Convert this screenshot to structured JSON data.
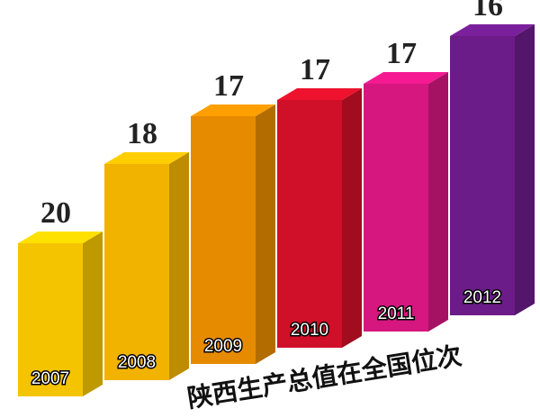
{
  "chart_data": {
    "type": "bar",
    "title": "陕西生产总值在全国位次",
    "categories": [
      "2007",
      "2008",
      "2009",
      "2010",
      "2011",
      "2012"
    ],
    "values": [
      20,
      18,
      17,
      17,
      17,
      16
    ],
    "colors": [
      "#f5c400",
      "#f2b300",
      "#e68a00",
      "#cf1028",
      "#d5177f",
      "#6b1c88"
    ]
  }
}
